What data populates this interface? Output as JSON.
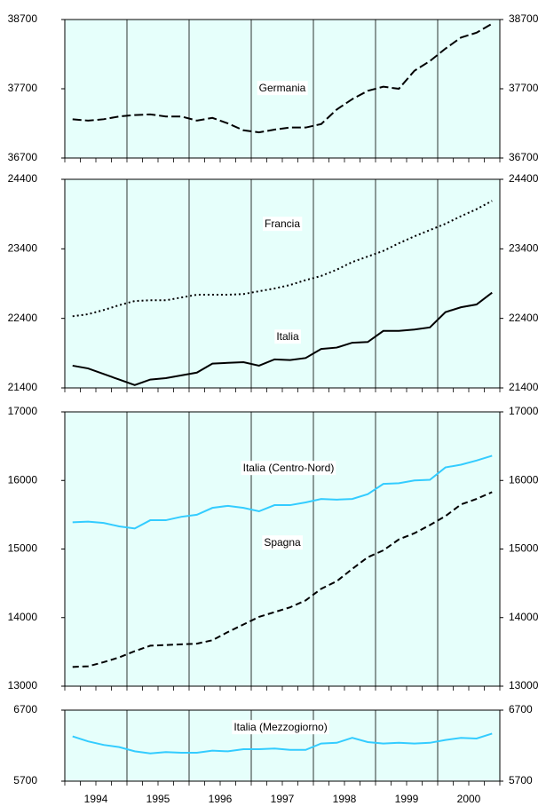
{
  "chart_data": [
    {
      "type": "line",
      "xlim": [
        1994,
        2001
      ],
      "ylim": [
        36700,
        38700
      ],
      "yticks": [
        36700,
        37700,
        38700
      ],
      "x": [
        1994.125,
        1994.375,
        1994.625,
        1994.875,
        1995.125,
        1995.375,
        1995.625,
        1995.875,
        1996.125,
        1996.375,
        1996.625,
        1996.875,
        1997.125,
        1997.375,
        1997.625,
        1997.875,
        1998.125,
        1998.375,
        1998.625,
        1998.875,
        1999.125,
        1999.375,
        1999.625,
        1999.875,
        2000.125,
        2000.375,
        2000.625,
        2000.875
      ],
      "series": [
        {
          "name": "Germania",
          "color": "#000000",
          "dash": "long-dash",
          "values": [
            37260,
            37240,
            37260,
            37300,
            37320,
            37330,
            37300,
            37300,
            37240,
            37280,
            37200,
            37100,
            37070,
            37110,
            37140,
            37140,
            37190,
            37400,
            37550,
            37670,
            37730,
            37700,
            37960,
            38100,
            38280,
            38440,
            38510,
            38640
          ]
        }
      ]
    },
    {
      "type": "line",
      "xlim": [
        1994,
        2001
      ],
      "ylim": [
        21400,
        24400
      ],
      "yticks": [
        21400,
        22400,
        23400,
        24400
      ],
      "x": [
        1994.125,
        1994.375,
        1994.625,
        1994.875,
        1995.125,
        1995.375,
        1995.625,
        1995.875,
        1996.125,
        1996.375,
        1996.625,
        1996.875,
        1997.125,
        1997.375,
        1997.625,
        1997.875,
        1998.125,
        1998.375,
        1998.625,
        1998.875,
        1999.125,
        1999.375,
        1999.625,
        1999.875,
        2000.125,
        2000.375,
        2000.625,
        2000.875
      ],
      "series": [
        {
          "name": "Francia",
          "color": "#000000",
          "dash": "dotted",
          "values": [
            22430,
            22460,
            22520,
            22590,
            22650,
            22660,
            22660,
            22700,
            22740,
            22740,
            22740,
            22750,
            22790,
            22830,
            22880,
            22950,
            23010,
            23100,
            23210,
            23290,
            23370,
            23480,
            23580,
            23670,
            23760,
            23870,
            23970,
            24090
          ]
        },
        {
          "name": "Italia",
          "color": "#000000",
          "dash": "solid",
          "values": [
            21720,
            21680,
            21600,
            21520,
            21440,
            21520,
            21540,
            21580,
            21620,
            21750,
            21760,
            21770,
            21720,
            21810,
            21800,
            21830,
            21960,
            21980,
            22050,
            22060,
            22220,
            22220,
            22240,
            22270,
            22490,
            22560,
            22600,
            22770
          ]
        }
      ]
    },
    {
      "type": "line",
      "xlim": [
        1994,
        2001
      ],
      "ylim": [
        13000,
        17000
      ],
      "yticks": [
        13000,
        14000,
        15000,
        16000,
        17000
      ],
      "x": [
        1994.125,
        1994.375,
        1994.625,
        1994.875,
        1995.125,
        1995.375,
        1995.625,
        1995.875,
        1996.125,
        1996.375,
        1996.625,
        1996.875,
        1997.125,
        1997.375,
        1997.625,
        1997.875,
        1998.125,
        1998.375,
        1998.625,
        1998.875,
        1999.125,
        1999.375,
        1999.625,
        1999.875,
        2000.125,
        2000.375,
        2000.625,
        2000.875
      ],
      "series": [
        {
          "name": "Italia (Centro-Nord)",
          "color": "#33ccff",
          "dash": "solid",
          "values": [
            15390,
            15400,
            15380,
            15330,
            15300,
            15420,
            15420,
            15470,
            15500,
            15600,
            15630,
            15600,
            15550,
            15640,
            15640,
            15680,
            15730,
            15720,
            15730,
            15800,
            15950,
            15960,
            16000,
            16010,
            16190,
            16230,
            16290,
            16360
          ]
        },
        {
          "name": "Spagna",
          "color": "#000000",
          "dash": "dashed",
          "values": [
            13280,
            13290,
            13350,
            13420,
            13510,
            13590,
            13600,
            13610,
            13620,
            13670,
            13790,
            13900,
            14010,
            14080,
            14150,
            14250,
            14420,
            14530,
            14710,
            14880,
            14980,
            15140,
            15230,
            15350,
            15480,
            15650,
            15730,
            15830
          ]
        }
      ]
    },
    {
      "type": "line",
      "xlim": [
        1994,
        2001
      ],
      "ylim": [
        5700,
        6700
      ],
      "yticks": [
        5700,
        6700
      ],
      "x": [
        1994.125,
        1994.375,
        1994.625,
        1994.875,
        1995.125,
        1995.375,
        1995.625,
        1995.875,
        1996.125,
        1996.375,
        1996.625,
        1996.875,
        1997.125,
        1997.375,
        1997.625,
        1997.875,
        1998.125,
        1998.375,
        1998.625,
        1998.875,
        1999.125,
        1999.375,
        1999.625,
        1999.875,
        2000.125,
        2000.375,
        2000.625,
        2000.875
      ],
      "xticks": [
        {
          "value": 1994.5,
          "label": "1994"
        },
        {
          "value": 1995.5,
          "label": "1995"
        },
        {
          "value": 1996.5,
          "label": "1996"
        },
        {
          "value": 1997.5,
          "label": "1997"
        },
        {
          "value": 1998.5,
          "label": "1998"
        },
        {
          "value": 1999.5,
          "label": "1999"
        },
        {
          "value": 2000.5,
          "label": "2000"
        }
      ],
      "series": [
        {
          "name": "Italia (Mezzogiorno)",
          "color": "#33ccff",
          "dash": "solid",
          "values": [
            6330,
            6260,
            6210,
            6180,
            6120,
            6090,
            6110,
            6100,
            6100,
            6130,
            6120,
            6150,
            6150,
            6160,
            6140,
            6140,
            6230,
            6240,
            6310,
            6250,
            6230,
            6240,
            6230,
            6240,
            6280,
            6310,
            6300,
            6370
          ]
        }
      ]
    }
  ]
}
